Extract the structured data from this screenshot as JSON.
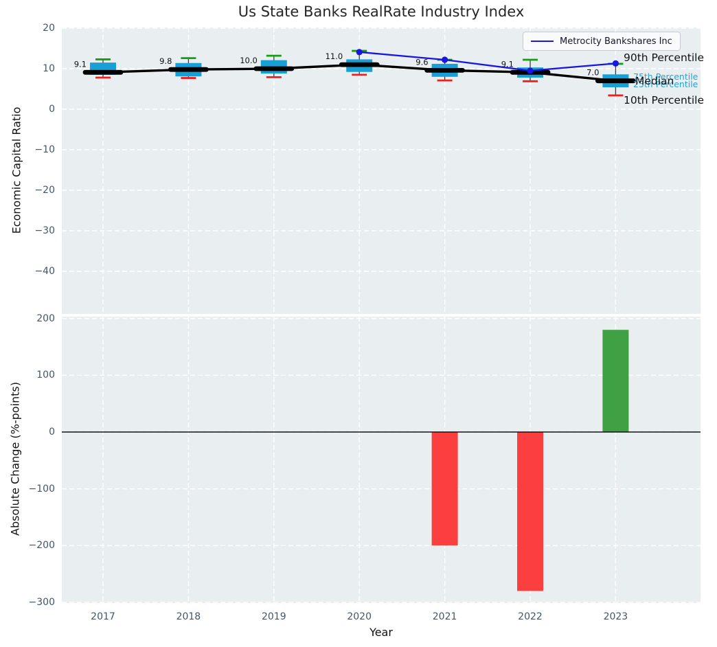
{
  "title": "Us State Banks RealRate Industry Index",
  "legend": {
    "label": "Metrocity Bankshares Inc"
  },
  "annotations": [
    {
      "label": "90th Percentile",
      "color": "#111111"
    },
    {
      "label": "75th Percentile",
      "color": "#25a3d8"
    },
    {
      "label": "25th Percentile",
      "color": "#25a3d8"
    },
    {
      "label": "Median",
      "color": "#111111"
    },
    {
      "label": "10th Percentile",
      "color": "#111111"
    }
  ],
  "colors": {
    "panel_background": "#e9eef0",
    "grid": "#ffffff",
    "tick_label": "#42566b",
    "box_fill": "#189fd5",
    "p90_cap": "#10a010",
    "p10_cap": "#f01e1e",
    "median_line": "#000000",
    "company_line": "#1717e0",
    "bar_negative": "#fb3f3f",
    "bar_positive": "#3fa044",
    "whisker": "#3a3a3a"
  },
  "chart_data": [
    {
      "type": "boxplot+line",
      "title": "Us State Banks RealRate Industry Index",
      "ylabel": "Economic Capital Ratio",
      "years": [
        2017,
        2018,
        2019,
        2020,
        2021,
        2022,
        2023
      ],
      "yticks": [
        20,
        10,
        0,
        -10,
        -20,
        -30,
        -40
      ],
      "ylim": [
        -50,
        20.5
      ],
      "grid": true,
      "legend_position": "upper right",
      "boxes": {
        "median": [
          9.1,
          9.8,
          10.0,
          11.0,
          9.6,
          9.1,
          7.0
        ],
        "q1": [
          8.5,
          8.1,
          8.8,
          9.2,
          8.0,
          7.8,
          5.4
        ],
        "q3": [
          11.5,
          11.4,
          12.1,
          12.3,
          11.2,
          10.3,
          8.6
        ],
        "p10": [
          7.8,
          7.7,
          7.9,
          8.5,
          7.1,
          6.9,
          3.4
        ],
        "p90": [
          12.3,
          12.6,
          13.2,
          14.4,
          12.2,
          12.2,
          11.2
        ]
      },
      "median_labels": [
        "9.1",
        "9.8",
        "10.0",
        "11.0",
        "9.6",
        "9.1",
        "7.0"
      ],
      "series": [
        {
          "name": "Metrocity Bankshares Inc",
          "x": [
            2020,
            2021,
            2022,
            2023
          ],
          "y": [
            14.1,
            12.2,
            9.5,
            11.3
          ]
        }
      ]
    },
    {
      "type": "bar",
      "ylabel": "Absolute Change (%-points)",
      "xlabel": "Year",
      "x": [
        2021,
        2022,
        2023
      ],
      "values": [
        -200,
        -280,
        180
      ],
      "bar_colors": [
        "#fb3f3f",
        "#fb3f3f",
        "#3fa044"
      ],
      "yticks": [
        200,
        100,
        0,
        -100,
        -200,
        -300
      ],
      "ylim": [
        -302,
        202
      ],
      "grid": true
    }
  ]
}
